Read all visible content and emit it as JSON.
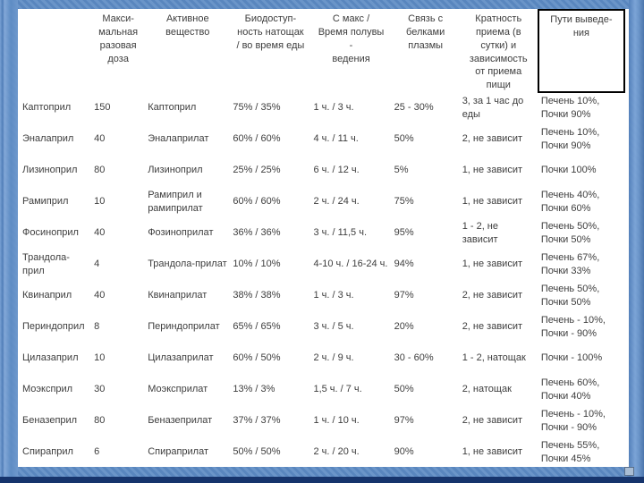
{
  "slide": {
    "frame_color": "#5e8cc4",
    "bottom_band_color": "#16346c",
    "surface_color": "#ffffff",
    "text_color": "#3d3d3d",
    "elimination_header_box_border": "#000000"
  },
  "table": {
    "fields": [
      "name",
      "dose",
      "active",
      "bio",
      "tmax",
      "protein",
      "frequency",
      "elimination"
    ],
    "headers": [
      "",
      "Макси-\nмальная\nразовая\nдоза",
      "Активное\nвещество",
      "Биодоступ-\nность натощак\n/ во время еды",
      "С макс /\nВремя полувы\n-\nведения",
      "Связь с\nбелками\nплазмы",
      "Кратность\nприема (в\nсутки) и\nзависимость\nот приема\nпищи",
      "Пути выведе-\nния"
    ],
    "rows": [
      {
        "name": "Каптоприл",
        "dose": "150",
        "active": "Каптоприл",
        "bio": "75% / 35%",
        "tmax": "1 ч. / 3 ч.",
        "protein": "25 - 30%",
        "frequency": "3, за 1 час до еды",
        "elimination": "Печень 10%, Почки 90%"
      },
      {
        "name": "Эналаприл",
        "dose": "40",
        "active": "Эналаприлат",
        "bio": "60% / 60%",
        "tmax": "4 ч. / 11 ч.",
        "protein": "50%",
        "frequency": "2, не зависит",
        "elimination": "Печень 10%, Почки 90%"
      },
      {
        "name": "Лизиноприл",
        "dose": "80",
        "active": "Лизиноприл",
        "bio": "25% / 25%",
        "tmax": "6 ч. / 12 ч.",
        "protein": "5%",
        "frequency": "1, не зависит",
        "elimination": "Почки 100%"
      },
      {
        "name": "Рамиприл",
        "dose": "10",
        "active": "Рамиприл и рамиприлат",
        "bio": "60% / 60%",
        "tmax": "2 ч. / 24 ч.",
        "protein": "75%",
        "frequency": "1, не зависит",
        "elimination": "Печень 40%, Почки 60%"
      },
      {
        "name": "Фосиноприл",
        "dose": "40",
        "active": "Фозиноприлат",
        "bio": "36% / 36%",
        "tmax": "3 ч. / 11,5 ч.",
        "protein": "95%",
        "frequency": "1 - 2, не зависит",
        "elimination": "Печень 50%, Почки 50%"
      },
      {
        "name": "Трандола-прил",
        "dose": "4",
        "active": "Трандола-прилат",
        "bio": "10% / 10%",
        "tmax": "4-10 ч. / 16-24 ч.",
        "protein": "94%",
        "frequency": "1, не зависит",
        "elimination": "Печень 67%, Почки 33%"
      },
      {
        "name": "Квинаприл",
        "dose": "40",
        "active": "Квинаприлат",
        "bio": "38% / 38%",
        "tmax": "1 ч. / 3 ч.",
        "protein": "97%",
        "frequency": "2, не зависит",
        "elimination": "Печень 50%, Почки 50%"
      },
      {
        "name": "Периндоприл",
        "dose": "8",
        "active": "Периндоприлат",
        "bio": "65% / 65%",
        "tmax": "3 ч. / 5 ч.",
        "protein": "20%",
        "frequency": "2, не зависит",
        "elimination": "Печень - 10%, Почки - 90%"
      },
      {
        "name": "Цилазаприл",
        "dose": "10",
        "active": "Цилазаприлат",
        "bio": "60% / 50%",
        "tmax": "2 ч. / 9 ч.",
        "protein": "30 - 60%",
        "frequency": "1 - 2, натощак",
        "elimination": "Почки - 100%"
      },
      {
        "name": "Моэксприл",
        "dose": "30",
        "active": "Моэксприлат",
        "bio": "13% / 3%",
        "tmax": "1,5 ч. / 7 ч.",
        "protein": "50%",
        "frequency": "2, натощак",
        "elimination": "Печень 60%, Почки 40%"
      },
      {
        "name": "Беназеприл",
        "dose": "80",
        "active": "Беназеприлат",
        "bio": "37% / 37%",
        "tmax": "1 ч. / 10 ч.",
        "protein": "97%",
        "frequency": "2, не зависит",
        "elimination": "Печень - 10%, Почки - 90%"
      },
      {
        "name": "Спираприл",
        "dose": "6",
        "active": "Спираприлат",
        "bio": "50% / 50%",
        "tmax": "2 ч. / 20 ч.",
        "protein": "90%",
        "frequency": "1, не зависит",
        "elimination": "Печень 55%, Почки 45%"
      }
    ]
  }
}
